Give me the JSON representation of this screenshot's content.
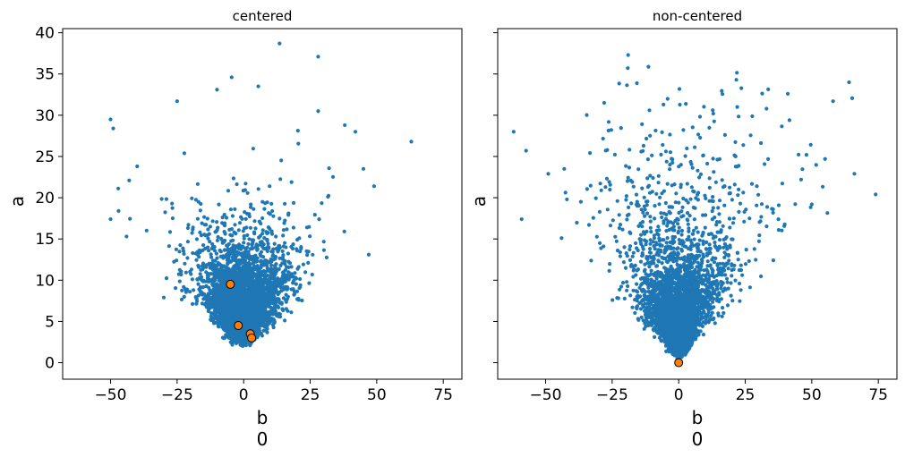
{
  "chart_data": [
    {
      "type": "scatter",
      "title": "centered",
      "xlabel": "b",
      "xlabel_sub": "0",
      "ylabel": "a",
      "xlim": [
        -68,
        82
      ],
      "ylim": [
        -2,
        40.5
      ],
      "xticks": [
        -50,
        -25,
        0,
        25,
        50,
        75
      ],
      "yticks": [
        0,
        5,
        10,
        15,
        20,
        25,
        30,
        35,
        40
      ],
      "y_ticklabels_visible": true,
      "grid": false,
      "n_samples": 4000,
      "sample_color": "#1f77b4",
      "highlight_color": "#ff7f0e",
      "highlight_edge": "#000000",
      "highlighted": [
        {
          "x": -5,
          "y": 9.5
        },
        {
          "x": -2,
          "y": 4.5
        },
        {
          "x": 2.5,
          "y": 3.5
        },
        {
          "x": 3,
          "y": 3.0
        }
      ],
      "outliers": [
        {
          "x": 13.5,
          "y": 38.7
        },
        {
          "x": 28,
          "y": 37.1
        },
        {
          "x": -4.5,
          "y": 34.6
        },
        {
          "x": -10,
          "y": 33.1
        },
        {
          "x": 5.5,
          "y": 33.5
        },
        {
          "x": -25,
          "y": 31.7
        },
        {
          "x": -50,
          "y": 29.5
        },
        {
          "x": -49,
          "y": 28.4
        },
        {
          "x": 63,
          "y": 26.8
        },
        {
          "x": 28,
          "y": 30.5
        },
        {
          "x": 38,
          "y": 28.8
        },
        {
          "x": 42,
          "y": 28.0
        },
        {
          "x": 47,
          "y": 13.1
        },
        {
          "x": 49,
          "y": 21.4
        },
        {
          "x": -50,
          "y": 17.4
        },
        {
          "x": -47,
          "y": 18.4
        },
        {
          "x": -44,
          "y": 15.3
        },
        {
          "x": 45,
          "y": 23.5
        },
        {
          "x": -40,
          "y": 23.8
        },
        {
          "x": -43,
          "y": 22.1
        },
        {
          "x": -30,
          "y": 7.9
        }
      ]
    },
    {
      "type": "scatter",
      "title": "non-centered",
      "xlabel": "b",
      "xlabel_sub": "0",
      "ylabel": "a",
      "xlim": [
        -68,
        82
      ],
      "ylim": [
        -2,
        40.5
      ],
      "xticks": [
        -50,
        -25,
        0,
        25,
        50,
        75
      ],
      "yticks": [
        0,
        5,
        10,
        15,
        20,
        25,
        30,
        35,
        40
      ],
      "y_ticklabels_visible": false,
      "grid": false,
      "n_samples": 4000,
      "sample_color": "#1f77b4",
      "highlight_color": "#ff7f0e",
      "highlight_edge": "#000000",
      "highlighted": [
        {
          "x": 0,
          "y": 0
        }
      ],
      "outliers": [
        {
          "x": -19,
          "y": 37.3
        },
        {
          "x": 64,
          "y": 34.0
        },
        {
          "x": 41,
          "y": 32.6
        },
        {
          "x": 58,
          "y": 31.7
        },
        {
          "x": -62,
          "y": 28.0
        },
        {
          "x": -59,
          "y": 17.4
        },
        {
          "x": 74,
          "y": 20.4
        },
        {
          "x": 50,
          "y": 19.2
        },
        {
          "x": -44,
          "y": 15.1
        },
        {
          "x": 55,
          "y": 24.7
        },
        {
          "x": -28,
          "y": 31.5
        },
        {
          "x": 13,
          "y": 30.2
        },
        {
          "x": 22,
          "y": 31.0
        },
        {
          "x": 33,
          "y": 30.8
        },
        {
          "x": -11,
          "y": 30.6
        },
        {
          "x": -43,
          "y": 23.5
        },
        {
          "x": -49,
          "y": 22.9
        },
        {
          "x": -42,
          "y": 19.8
        },
        {
          "x": 46,
          "y": 22.2
        },
        {
          "x": 48,
          "y": 25.2
        }
      ]
    }
  ]
}
